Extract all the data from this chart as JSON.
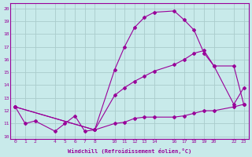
{
  "xlabel": "Windchill (Refroidissement éolien,°C)",
  "bg_color": "#c8eaea",
  "line_color": "#990099",
  "grid_color": "#aacccc",
  "xlim": [
    -0.5,
    23.5
  ],
  "ylim": [
    9.8,
    20.4
  ],
  "yticks": [
    10,
    11,
    12,
    13,
    14,
    15,
    16,
    17,
    18,
    19,
    20
  ],
  "xticks": [
    0,
    1,
    2,
    4,
    5,
    6,
    7,
    8,
    10,
    11,
    12,
    13,
    14,
    16,
    17,
    18,
    19,
    20,
    22,
    23
  ],
  "line1_x": [
    0,
    1,
    2,
    4,
    5,
    6,
    7,
    8,
    10,
    11,
    12,
    13,
    14,
    16,
    17,
    18,
    19,
    20,
    22,
    23
  ],
  "line1_y": [
    12.3,
    11.0,
    11.2,
    10.4,
    11.0,
    11.6,
    10.4,
    10.5,
    11.0,
    11.1,
    11.4,
    11.5,
    11.5,
    11.5,
    11.6,
    11.8,
    12.0,
    12.0,
    12.3,
    12.5
  ],
  "line2_x": [
    0,
    8,
    10,
    11,
    12,
    13,
    14,
    16,
    17,
    18,
    19,
    20,
    22,
    23
  ],
  "line2_y": [
    12.3,
    10.5,
    13.2,
    13.8,
    14.3,
    14.7,
    15.1,
    15.6,
    16.0,
    16.5,
    16.7,
    15.5,
    15.5,
    12.5
  ],
  "line3_x": [
    0,
    8,
    10,
    11,
    12,
    13,
    14,
    16,
    17,
    18,
    19,
    20,
    22,
    23
  ],
  "line3_y": [
    12.3,
    10.5,
    15.2,
    17.0,
    18.5,
    19.3,
    19.7,
    19.8,
    19.1,
    18.3,
    16.5,
    15.5,
    12.5,
    13.8
  ]
}
